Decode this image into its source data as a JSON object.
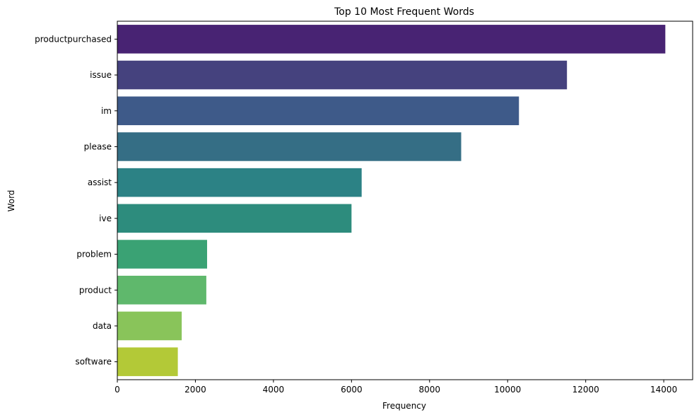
{
  "chart_data": {
    "type": "bar",
    "orientation": "horizontal",
    "title": "Top 10 Most Frequent Words",
    "xlabel": "Frequency",
    "ylabel": "Word",
    "categories": [
      "productpurchased",
      "issue",
      "im",
      "please",
      "assist",
      "ive",
      "problem",
      "product",
      "data",
      "software"
    ],
    "values": [
      14040,
      11520,
      10290,
      8810,
      6260,
      6000,
      2300,
      2280,
      1650,
      1550
    ],
    "xlim": [
      0,
      14740
    ],
    "xticks": [
      0,
      2000,
      4000,
      6000,
      8000,
      10000,
      12000,
      14000
    ],
    "xtick_labels": [
      "0",
      "2000",
      "4000",
      "6000",
      "8000",
      "10000",
      "12000",
      "14000"
    ],
    "colors": [
      "#482373",
      "#45427e",
      "#3e5a89",
      "#356e85",
      "#2c8285",
      "#2d8c7d",
      "#3aa274",
      "#5fb86c",
      "#89c45a",
      "#b3c937"
    ],
    "grid": false,
    "legend": "none"
  }
}
